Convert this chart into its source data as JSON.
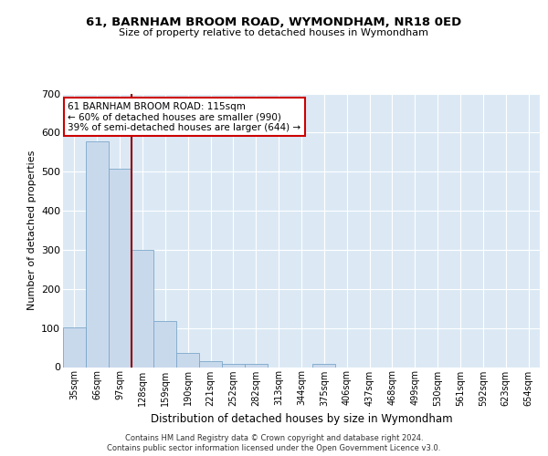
{
  "title": "61, BARNHAM BROOM ROAD, WYMONDHAM, NR18 0ED",
  "subtitle": "Size of property relative to detached houses in Wymondham",
  "xlabel": "Distribution of detached houses by size in Wymondham",
  "ylabel": "Number of detached properties",
  "bar_color": "#c9d9ec",
  "bar_edge_color": "#7ba7c9",
  "background_color": "#dce9f5",
  "grid_color": "#ffffff",
  "categories": [
    "35sqm",
    "66sqm",
    "97sqm",
    "128sqm",
    "159sqm",
    "190sqm",
    "221sqm",
    "252sqm",
    "282sqm",
    "313sqm",
    "344sqm",
    "375sqm",
    "406sqm",
    "437sqm",
    "468sqm",
    "499sqm",
    "530sqm",
    "561sqm",
    "592sqm",
    "623sqm",
    "654sqm"
  ],
  "values": [
    101,
    578,
    508,
    300,
    117,
    36,
    15,
    9,
    9,
    0,
    0,
    8,
    0,
    0,
    0,
    0,
    0,
    0,
    0,
    0,
    0
  ],
  "ylim": [
    0,
    700
  ],
  "yticks": [
    0,
    100,
    200,
    300,
    400,
    500,
    600,
    700
  ],
  "red_line_x": 2.5,
  "annotation_text": "61 BARNHAM BROOM ROAD: 115sqm\n← 60% of detached houses are smaller (990)\n39% of semi-detached houses are larger (644) →",
  "annotation_box_color": "#ffffff",
  "annotation_box_edge": "#cc0000",
  "red_line_color": "#8b0000",
  "footer_line1": "Contains HM Land Registry data © Crown copyright and database right 2024.",
  "footer_line2": "Contains public sector information licensed under the Open Government Licence v3.0."
}
